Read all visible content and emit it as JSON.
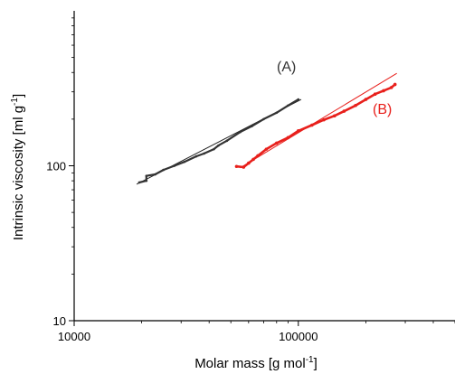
{
  "chart_data": {
    "type": "scatter",
    "title": "",
    "xlabel": "Molar mass [g mol",
    "xlabel_sup": "-1",
    "xlabel_end": "]",
    "ylabel": "Intrinsic viscosity [ml g",
    "ylabel_sup": "-1",
    "ylabel_end": "]",
    "xscale": "log",
    "yscale": "log",
    "xlim": [
      10000,
      500000
    ],
    "ylim": [
      10,
      1000
    ],
    "xticks": [
      10000,
      100000
    ],
    "xtick_labels": [
      "10000",
      "100000"
    ],
    "yticks": [
      10,
      100
    ],
    "ytick_labels": [
      "10",
      "100"
    ],
    "grid": false,
    "legend": "none",
    "series": [
      {
        "name": "(A)",
        "color": "#333333",
        "fit_color": "#222222",
        "x": [
          19500,
          21000,
          21000,
          23000,
          25000,
          28000,
          31000,
          35000,
          38000,
          42000,
          44000,
          48000,
          55000,
          62000,
          70000,
          80000,
          90000,
          100000
        ],
        "y": [
          78,
          80,
          86,
          88,
          94,
          100,
          106,
          115,
          120,
          128,
          135,
          145,
          165,
          180,
          200,
          220,
          245,
          268
        ],
        "fit": {
          "x": [
            19000,
            103000
          ],
          "y": [
            76,
            268
          ]
        }
      },
      {
        "name": "(B)",
        "color": "#e8201c",
        "fit_color": "#e8201c",
        "x": [
          53000,
          57000,
          60000,
          63000,
          66000,
          72000,
          80000,
          90000,
          100000,
          115000,
          130000,
          145000,
          160000,
          180000,
          200000,
          220000,
          240000,
          260000,
          270000
        ],
        "y": [
          99,
          98,
          104,
          110,
          116,
          128,
          140,
          152,
          168,
          183,
          198,
          210,
          225,
          245,
          268,
          290,
          305,
          320,
          335
        ],
        "fit": {
          "x": [
            55000,
            275000
          ],
          "y": [
            97,
            395
          ]
        }
      }
    ]
  }
}
